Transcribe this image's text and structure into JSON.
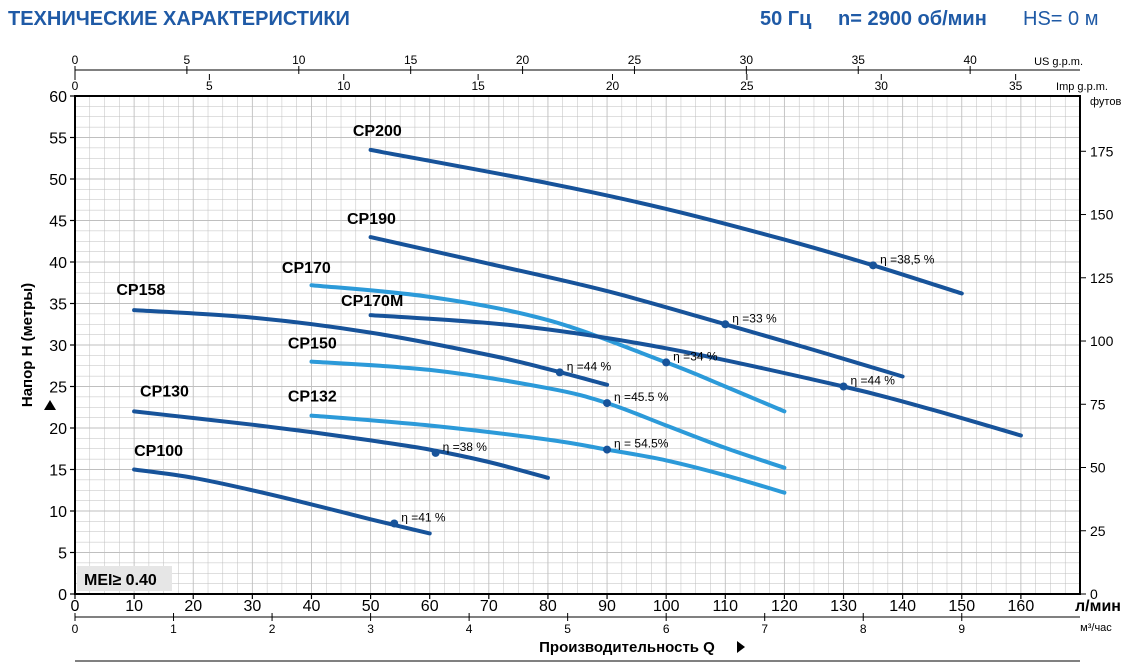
{
  "header": {
    "title": "ТЕХНИЧЕСКИЕ ХАРАКТЕРИСТИКИ",
    "freq": "50 Гц",
    "speed": "n= 2900 об/мин",
    "hs": "HS= 0 м"
  },
  "colors": {
    "dark": "#17539a",
    "light": "#2c9ad9",
    "title": "#1f5aa6",
    "grid": "#bfbfbf",
    "badge_bg": "#e6e6e6"
  },
  "chart_data": {
    "type": "line",
    "xlabel": "Производительность Q",
    "ylabel": "Напор H (метры)",
    "xunit": "л/мин",
    "x_range": [
      0,
      170
    ],
    "y_range": [
      0,
      60
    ],
    "x_ticks": [
      0,
      10,
      20,
      30,
      40,
      50,
      60,
      70,
      80,
      90,
      100,
      110,
      120,
      130,
      140,
      150,
      160
    ],
    "y_ticks": [
      0,
      5,
      10,
      15,
      20,
      25,
      30,
      35,
      40,
      45,
      50,
      55,
      60
    ],
    "grid": true,
    "secondary_axes": {
      "top_usgpm": {
        "label": "US g.p.m.",
        "ticks": [
          0,
          5,
          10,
          15,
          20,
          25,
          30,
          35,
          40
        ]
      },
      "top_impgpm": {
        "label": "Imp g.p.m.",
        "ticks": [
          0,
          5,
          10,
          15,
          20,
          25,
          30,
          35
        ]
      },
      "bottom_m3h": {
        "label": "м³/час",
        "ticks": [
          0,
          1,
          2,
          3,
          4,
          5,
          6,
          7,
          8,
          9
        ]
      },
      "right_feet": {
        "label": "футов",
        "ticks": [
          0,
          25,
          50,
          75,
          100,
          125,
          150,
          175
        ]
      }
    },
    "mei_label": "MEI≥ 0.40",
    "series": [
      {
        "name": "CP100",
        "tone": "dark",
        "x": [
          10,
          20,
          30,
          40,
          50,
          60
        ],
        "y": [
          15.0,
          14.0,
          12.5,
          10.8,
          9.0,
          7.3
        ],
        "label_at": [
          10,
          16.6
        ],
        "eff_point": [
          54,
          8.5
        ],
        "eff_label": "η =41 %"
      },
      {
        "name": "CP130",
        "tone": "dark",
        "x": [
          10,
          20,
          30,
          40,
          50,
          60,
          70,
          80
        ],
        "y": [
          22.0,
          21.2,
          20.4,
          19.5,
          18.5,
          17.4,
          15.9,
          14.0
        ],
        "label_at": [
          11,
          23.8
        ],
        "eff_point": [
          61,
          17.0
        ],
        "eff_label": "η =38 %"
      },
      {
        "name": "CP132",
        "tone": "light",
        "x": [
          40,
          60,
          80,
          90,
          100,
          110,
          120
        ],
        "y": [
          21.5,
          20.3,
          18.6,
          17.4,
          16.1,
          14.3,
          12.2
        ],
        "label_at": [
          36,
          23.2
        ],
        "eff_point": [
          90,
          17.4
        ],
        "eff_label": "η = 54.5%"
      },
      {
        "name": "CP150",
        "tone": "light",
        "x": [
          40,
          60,
          80,
          90,
          100,
          110,
          120
        ],
        "y": [
          28.0,
          27.0,
          24.8,
          23.0,
          20.3,
          17.6,
          15.2
        ],
        "label_at": [
          36,
          29.6
        ],
        "eff_point": [
          90,
          23.0
        ],
        "eff_label": "η =45.5 %"
      },
      {
        "name": "CP158",
        "tone": "dark",
        "x": [
          10,
          30,
          50,
          70,
          80,
          90
        ],
        "y": [
          34.2,
          33.3,
          31.5,
          28.8,
          27.1,
          25.2
        ],
        "label_at": [
          7,
          36.0
        ],
        "eff_point": [
          82,
          26.7
        ],
        "eff_label": "η =44 %"
      },
      {
        "name": "CP170",
        "tone": "light",
        "x": [
          40,
          60,
          80,
          100,
          110,
          120
        ],
        "y": [
          37.2,
          35.8,
          33.0,
          27.9,
          25.0,
          22.0
        ],
        "label_at": [
          35,
          38.7
        ],
        "eff_point": [
          100,
          27.9
        ],
        "eff_label": "η =34 %"
      },
      {
        "name": "CP170M",
        "tone": "dark",
        "x": [
          50,
          75,
          100,
          130,
          145,
          160
        ],
        "y": [
          33.6,
          32.3,
          29.6,
          25.0,
          22.2,
          19.1
        ],
        "label_at": [
          45,
          34.7
        ],
        "eff_point": [
          130,
          25.0
        ],
        "eff_label": "η =44 %"
      },
      {
        "name": "CP190",
        "tone": "dark",
        "x": [
          50,
          70,
          90,
          110,
          125,
          140
        ],
        "y": [
          43.0,
          39.8,
          36.5,
          32.5,
          29.4,
          26.2
        ],
        "label_at": [
          46,
          44.6
        ],
        "eff_point": [
          110,
          32.5
        ],
        "eff_label": "η =33 %"
      },
      {
        "name": "CP200",
        "tone": "dark",
        "x": [
          50,
          80,
          100,
          120,
          135,
          150
        ],
        "y": [
          53.5,
          49.5,
          46.4,
          42.7,
          39.6,
          36.2
        ],
        "label_at": [
          47,
          55.2
        ],
        "eff_point": [
          135,
          39.6
        ],
        "eff_label": "η =38,5 %"
      }
    ]
  }
}
